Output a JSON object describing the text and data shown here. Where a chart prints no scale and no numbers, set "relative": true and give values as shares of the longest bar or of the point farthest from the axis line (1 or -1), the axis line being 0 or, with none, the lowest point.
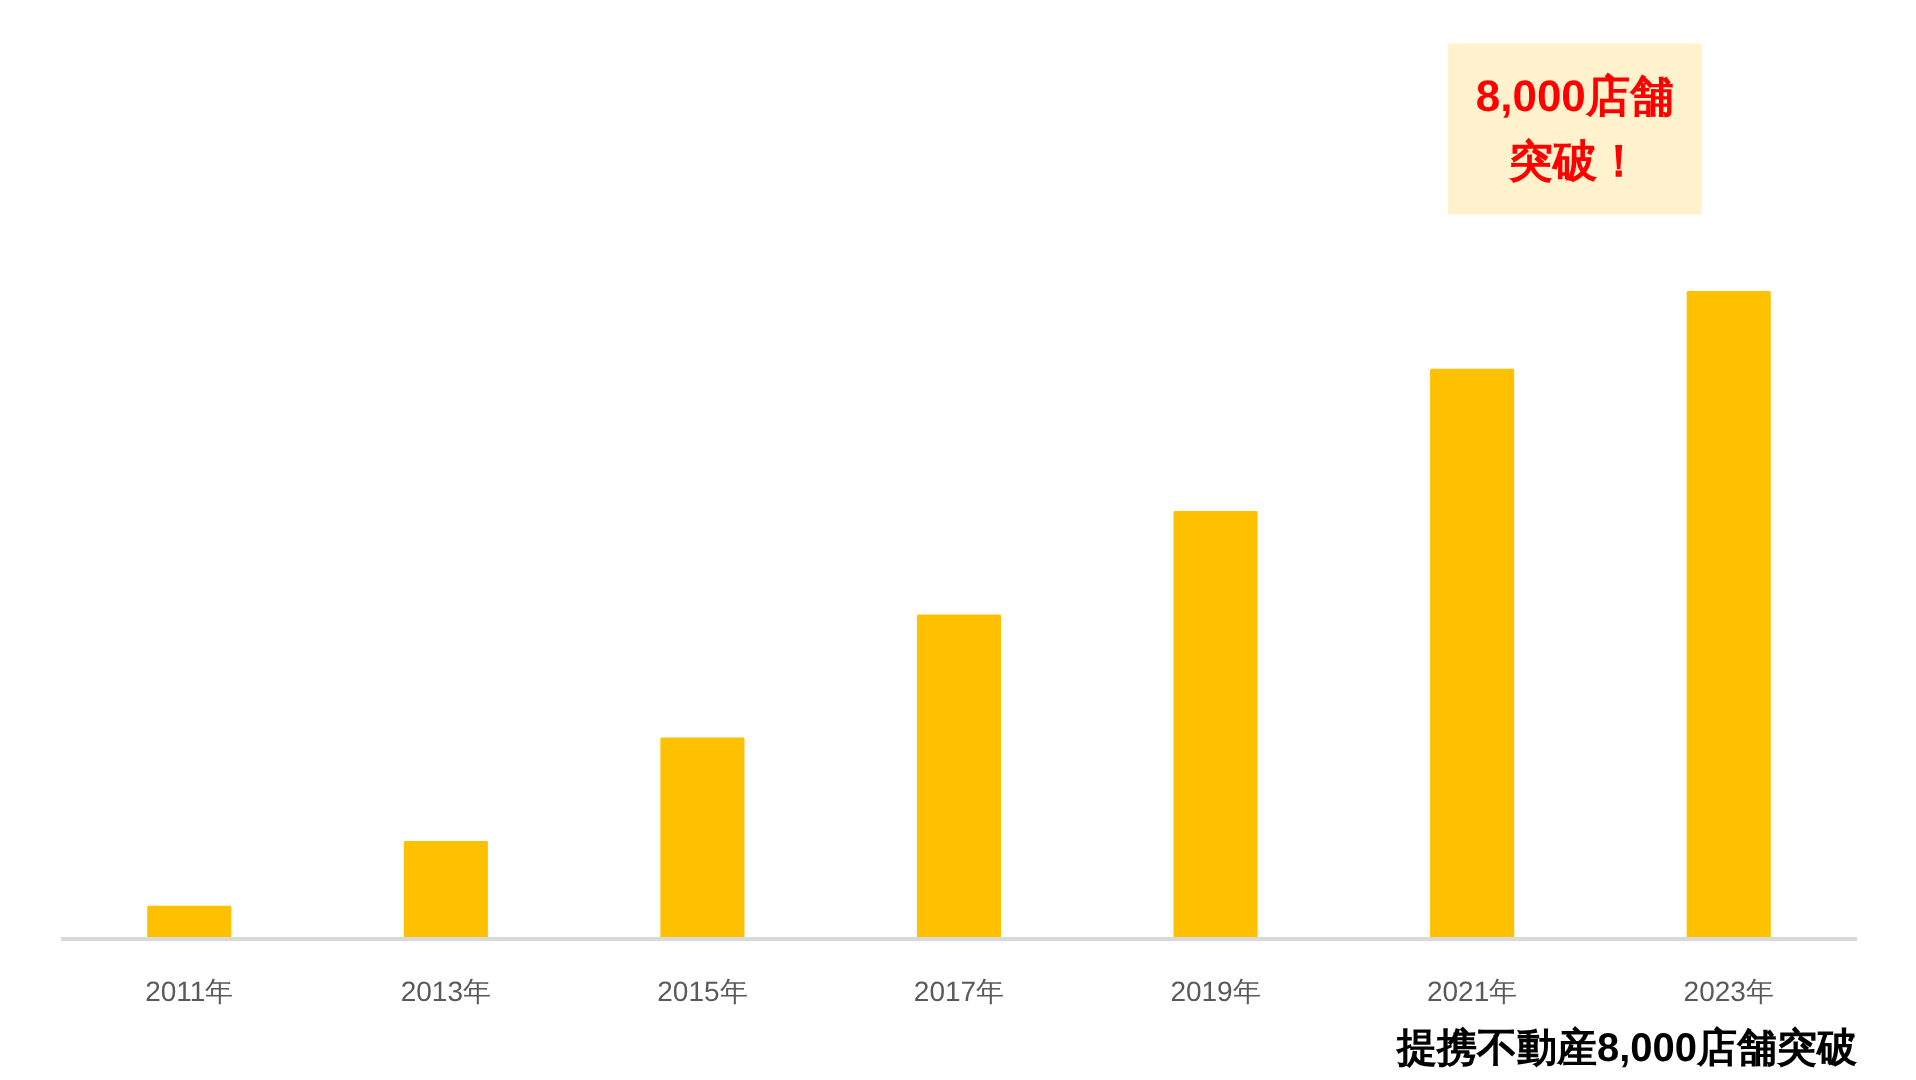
{
  "chart_data": {
    "type": "bar",
    "relative": true,
    "categories": [
      "2011年",
      "2013年",
      "2015年",
      "2017年",
      "2019年",
      "2021年",
      "2023年"
    ],
    "values": [
      0.05,
      0.15,
      0.31,
      0.5,
      0.66,
      0.88,
      1.0
    ],
    "color": "#ffc000",
    "annotations": [
      {
        "text": "8,000店舗突破！",
        "x": "2023年",
        "y": 1.0
      },
      "提携不動産8,000店舗突破"
    ],
    "grid": false
  }
}
